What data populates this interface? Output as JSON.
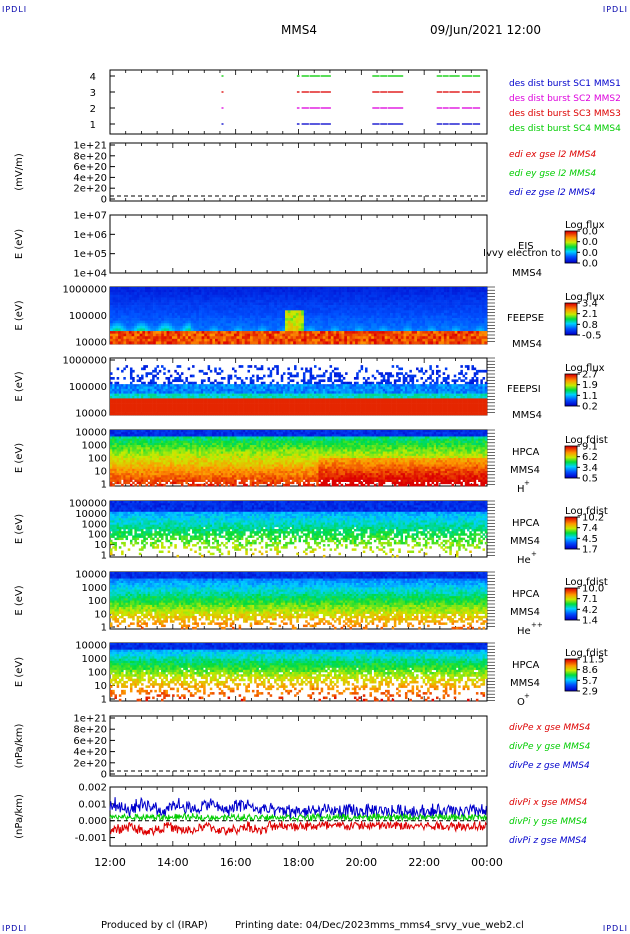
{
  "header": {
    "corner_tl": "IPDLI",
    "corner_tr": "IPDLI",
    "corner_bl": "IPDLI",
    "corner_br": "IPDLI",
    "spacecraft": "MMS4",
    "datetime": "09/Jun/2021 12:00"
  },
  "footer": {
    "produced_by": "Produced by cl (IRAP)",
    "printing_date": "Printing date: 04/Dec/2023",
    "filename": "mms_mms4_srvy_vue_web2.cl"
  },
  "colors": {
    "blue": "#0000cc",
    "magenta": "#dd00dd",
    "red": "#dd0000",
    "green": "#00cc00"
  },
  "chart_data": {
    "type": "multi-panel spectrogram",
    "x_tick_labels": [
      "12:00",
      "14:00",
      "16:00",
      "18:00",
      "20:00",
      "22:00",
      "00:00"
    ],
    "x_range": [
      "12:00",
      "00:00"
    ],
    "colormap": "rainbow (blue-low, red-high)",
    "panels": [
      {
        "id": "burst",
        "type": "timeline",
        "ytick_labels": [
          "4",
          "3",
          "2",
          "1"
        ],
        "legend": [
          {
            "label": "des dist burst SC1 MMS1",
            "color": "#0000cc"
          },
          {
            "label": "des dist burst SC2 MMS2",
            "color": "#dd00dd"
          },
          {
            "label": "des dist burst SC3 MMS3",
            "color": "#dd0000"
          },
          {
            "label": "des dist burst SC4 MMS4",
            "color": "#00cc00"
          }
        ],
        "segments_hours": [
          [
            15.55,
            15.58
          ],
          [
            17.95,
            18.0
          ],
          [
            18.1,
            18.3
          ],
          [
            18.35,
            18.65
          ],
          [
            18.7,
            19.0
          ],
          [
            20.35,
            20.55
          ],
          [
            20.6,
            20.8
          ],
          [
            20.85,
            21.3
          ],
          [
            22.4,
            22.55
          ],
          [
            22.6,
            22.75
          ],
          [
            22.8,
            23.1
          ],
          [
            23.2,
            23.5
          ],
          [
            23.55,
            23.75
          ]
        ]
      },
      {
        "id": "edi",
        "ylabel": "(mV/m)",
        "ytick_labels": [
          "1e+21",
          "8e+20",
          "6e+20",
          "4e+20",
          "2e+20",
          "0"
        ],
        "yrange": [
          0,
          1e+21
        ],
        "legend": [
          {
            "label": "edi ex gse l2 MMS4",
            "color": "#dd0000"
          },
          {
            "label": "edi ey gse l2 MMS4",
            "color": "#00cc00"
          },
          {
            "label": "edi ez gse l2 MMS4",
            "color": "#0000cc"
          }
        ]
      },
      {
        "id": "eis",
        "ylabel": "E (eV)",
        "ytick_labels": [
          "1e+07",
          "1e+06",
          "1e+05",
          "1e+04"
        ],
        "yrange": [
          10000.0,
          10000000.0
        ],
        "name": "EIS",
        "spacecraft": "MMS4",
        "overlay": "Ivvy electron to",
        "cbar_title": "Log flux",
        "cbar_ticks": [
          "0.0",
          "0.0",
          "0.0",
          "0.0"
        ]
      },
      {
        "id": "feepse",
        "ylabel": "E (eV)",
        "ytick_labels": [
          "1000000",
          "100000",
          "10000"
        ],
        "yrange": [
          10000,
          1000000
        ],
        "name": "FEEPSE",
        "spacecraft": "MMS4",
        "cbar_title": "Log flux",
        "cbar_ticks": [
          "3.4",
          "2.1",
          "0.8",
          "-0.5"
        ]
      },
      {
        "id": "feepsi",
        "ylabel": "E (eV)",
        "ytick_labels": [
          "1000000",
          "100000",
          "10000"
        ],
        "yrange": [
          10000,
          1000000
        ],
        "name": "FEEPSI",
        "spacecraft": "MMS4",
        "cbar_title": "Log flux",
        "cbar_ticks": [
          "2.7",
          "1.9",
          "1.1",
          "0.2"
        ]
      },
      {
        "id": "hpca_h",
        "ylabel": "E (eV)",
        "ytick_labels": [
          "10000",
          "1000",
          "100",
          "10",
          "1"
        ],
        "yrange": [
          1,
          30000
        ],
        "name": "HPCA",
        "spacecraft": "MMS4",
        "species": "H",
        "charge": "+",
        "cbar_title": "Log fdist",
        "cbar_ticks": [
          "9.1",
          "6.2",
          "3.4",
          "0.5"
        ]
      },
      {
        "id": "hpca_he",
        "ylabel": "E (eV)",
        "ytick_labels": [
          "100000",
          "10000",
          "1000",
          "100",
          "10",
          "1"
        ],
        "yrange": [
          1,
          100000
        ],
        "name": "HPCA",
        "spacecraft": "MMS4",
        "species": "He",
        "charge": "+",
        "cbar_title": "Log fdist",
        "cbar_ticks": [
          "10.2",
          "7.4",
          "4.5",
          "1.7"
        ]
      },
      {
        "id": "hpca_he2",
        "ylabel": "E (eV)",
        "ytick_labels": [
          "10000",
          "1000",
          "100",
          "10",
          "1"
        ],
        "yrange": [
          1,
          30000
        ],
        "name": "HPCA",
        "spacecraft": "MMS4",
        "species": "He",
        "charge": "++",
        "cbar_title": "Log fdist",
        "cbar_ticks": [
          "10.0",
          "7.1",
          "4.2",
          "1.4"
        ]
      },
      {
        "id": "hpca_o",
        "ylabel": "E (eV)",
        "ytick_labels": [
          "10000",
          "1000",
          "100",
          "10",
          "1"
        ],
        "yrange": [
          1,
          30000
        ],
        "name": "HPCA",
        "spacecraft": "MMS4",
        "species": "O",
        "charge": "+",
        "cbar_title": "Log fdist",
        "cbar_ticks": [
          "11.5",
          "8.6",
          "5.7",
          "2.9"
        ]
      },
      {
        "id": "divpe",
        "ylabel": "(nPa/km)",
        "ytick_labels": [
          "1e+21",
          "8e+20",
          "6e+20",
          "4e+20",
          "2e+20",
          "0"
        ],
        "yrange": [
          0,
          1e+21
        ],
        "legend": [
          {
            "label": "divPe x gse MMS4",
            "color": "#dd0000"
          },
          {
            "label": "divPe y gse MMS4",
            "color": "#00cc00"
          },
          {
            "label": "divPe z gse MMS4",
            "color": "#0000cc"
          }
        ]
      },
      {
        "id": "divpi",
        "ylabel": "(nPa/km)",
        "ytick_labels": [
          "0.002",
          "0.001",
          "0.000",
          "-0.001"
        ],
        "yrange": [
          -0.0015,
          0.002
        ],
        "legend": [
          {
            "label": "divPi x gse MMS4",
            "color": "#dd0000"
          },
          {
            "label": "divPi y gse MMS4",
            "color": "#00cc00"
          },
          {
            "label": "divPi z gse MMS4",
            "color": "#0000cc"
          }
        ]
      }
    ]
  }
}
